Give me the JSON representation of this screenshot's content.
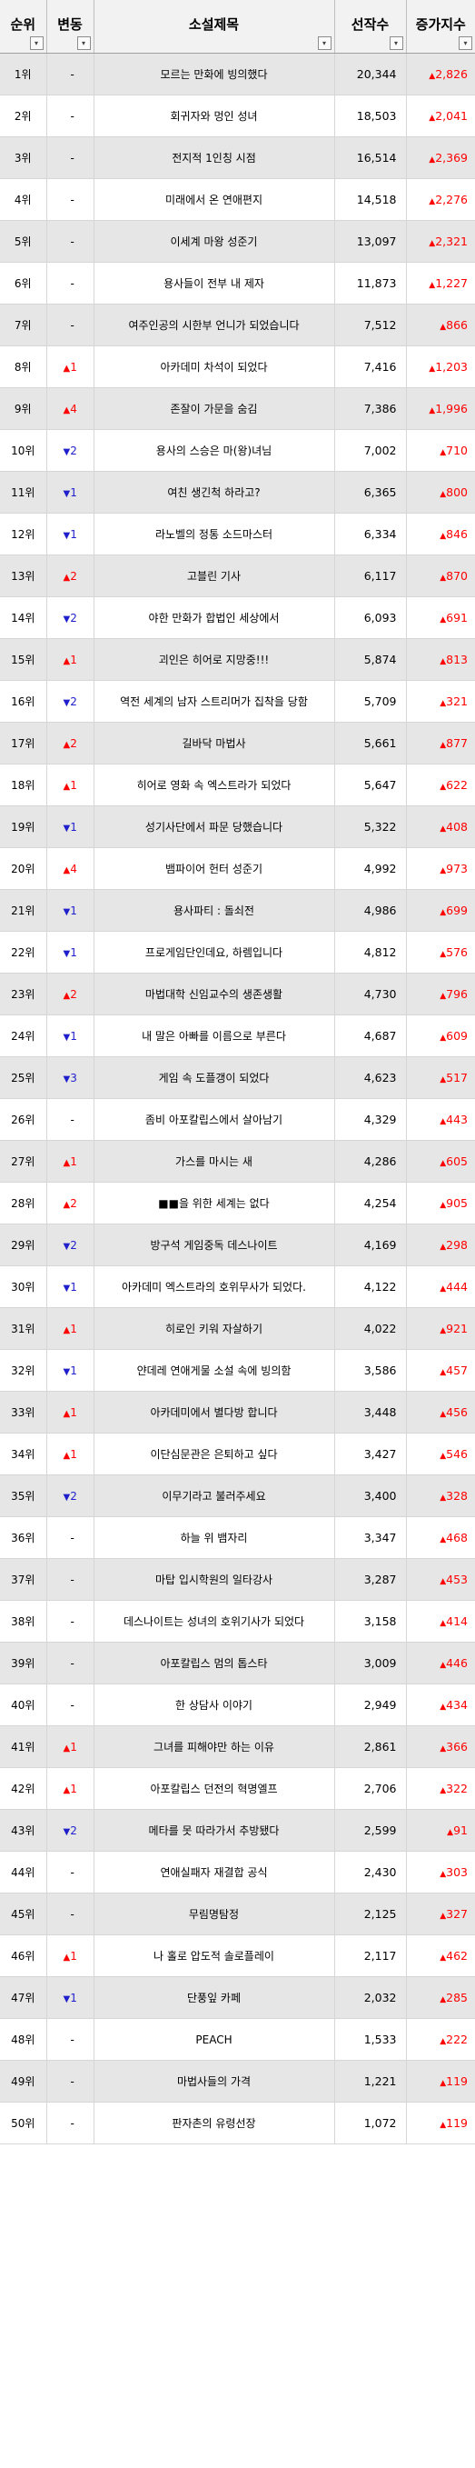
{
  "header": {
    "rank": "순위",
    "change": "변동",
    "title": "소설제목",
    "count": "선작수",
    "increase": "증가지수",
    "filter_icon": "▾"
  },
  "rows": [
    {
      "rank": "1위",
      "change_dir": "flat",
      "change": "-",
      "title": "모르는 만화에 빙의했다",
      "count": "20,344",
      "increase": "2,826"
    },
    {
      "rank": "2위",
      "change_dir": "flat",
      "change": "-",
      "title": "회귀자와 멍인 성녀",
      "count": "18,503",
      "increase": "2,041"
    },
    {
      "rank": "3위",
      "change_dir": "flat",
      "change": "-",
      "title": "전지적 1인칭 시점",
      "count": "16,514",
      "increase": "2,369"
    },
    {
      "rank": "4위",
      "change_dir": "flat",
      "change": "-",
      "title": "미래에서 온 연애편지",
      "count": "14,518",
      "increase": "2,276"
    },
    {
      "rank": "5위",
      "change_dir": "flat",
      "change": "-",
      "title": "이세계 마왕 성준기",
      "count": "13,097",
      "increase": "2,321"
    },
    {
      "rank": "6위",
      "change_dir": "flat",
      "change": "-",
      "title": "용사들이 전부 내 제자",
      "count": "11,873",
      "increase": "1,227"
    },
    {
      "rank": "7위",
      "change_dir": "flat",
      "change": "-",
      "title": "여주인공의 시한부 언니가 되었습니다",
      "count": "7,512",
      "increase": "866"
    },
    {
      "rank": "8위",
      "change_dir": "up",
      "change": "1",
      "title": "아카데미 차석이 되었다",
      "count": "7,416",
      "increase": "1,203"
    },
    {
      "rank": "9위",
      "change_dir": "up",
      "change": "4",
      "title": "존잘이 가문을 숨김",
      "count": "7,386",
      "increase": "1,996"
    },
    {
      "rank": "10위",
      "change_dir": "down",
      "change": "2",
      "title": "용사의 스승은 마(왕)녀님",
      "count": "7,002",
      "increase": "710"
    },
    {
      "rank": "11위",
      "change_dir": "down",
      "change": "1",
      "title": "여친 생긴척 하라고?",
      "count": "6,365",
      "increase": "800"
    },
    {
      "rank": "12위",
      "change_dir": "down",
      "change": "1",
      "title": "라노벨의 정통 소드마스터",
      "count": "6,334",
      "increase": "846"
    },
    {
      "rank": "13위",
      "change_dir": "up",
      "change": "2",
      "title": "고블린 기사",
      "count": "6,117",
      "increase": "870"
    },
    {
      "rank": "14위",
      "change_dir": "down",
      "change": "2",
      "title": "야한 만화가 합법인 세상에서",
      "count": "6,093",
      "increase": "691"
    },
    {
      "rank": "15위",
      "change_dir": "up",
      "change": "1",
      "title": "괴인은 히어로 지망중!!!",
      "count": "5,874",
      "increase": "813"
    },
    {
      "rank": "16위",
      "change_dir": "down",
      "change": "2",
      "title": "역전 세계의 남자 스트리머가 집착을 당함",
      "count": "5,709",
      "increase": "321"
    },
    {
      "rank": "17위",
      "change_dir": "up",
      "change": "2",
      "title": "길바닥 마법사",
      "count": "5,661",
      "increase": "877"
    },
    {
      "rank": "18위",
      "change_dir": "up",
      "change": "1",
      "title": "히어로 영화 속 엑스트라가 되었다",
      "count": "5,647",
      "increase": "622"
    },
    {
      "rank": "19위",
      "change_dir": "down",
      "change": "1",
      "title": "성기사단에서 파문 당했습니다",
      "count": "5,322",
      "increase": "408"
    },
    {
      "rank": "20위",
      "change_dir": "up",
      "change": "4",
      "title": "뱀파이어 헌터 성준기",
      "count": "4,992",
      "increase": "973"
    },
    {
      "rank": "21위",
      "change_dir": "down",
      "change": "1",
      "title": "용사파티 : 돌쇠전",
      "count": "4,986",
      "increase": "699"
    },
    {
      "rank": "22위",
      "change_dir": "down",
      "change": "1",
      "title": "프로게임단인데요, 하렘입니다",
      "count": "4,812",
      "increase": "576"
    },
    {
      "rank": "23위",
      "change_dir": "up",
      "change": "2",
      "title": "마법대학 신임교수의 생존생활",
      "count": "4,730",
      "increase": "796"
    },
    {
      "rank": "24위",
      "change_dir": "down",
      "change": "1",
      "title": "내 말은 아빠를 이름으로 부른다",
      "count": "4,687",
      "increase": "609"
    },
    {
      "rank": "25위",
      "change_dir": "down",
      "change": "3",
      "title": "게임 속 도플갱이 되었다",
      "count": "4,623",
      "increase": "517"
    },
    {
      "rank": "26위",
      "change_dir": "flat",
      "change": "-",
      "title": "좀비 아포칼립스에서 살아남기",
      "count": "4,329",
      "increase": "443"
    },
    {
      "rank": "27위",
      "change_dir": "up",
      "change": "1",
      "title": "가스를 마시는 새",
      "count": "4,286",
      "increase": "605"
    },
    {
      "rank": "28위",
      "change_dir": "up",
      "change": "2",
      "title": "■■을 위한 세계는 없다",
      "count": "4,254",
      "increase": "905"
    },
    {
      "rank": "29위",
      "change_dir": "down",
      "change": "2",
      "title": "방구석 게임중독 데스나이트",
      "count": "4,169",
      "increase": "298"
    },
    {
      "rank": "30위",
      "change_dir": "down",
      "change": "1",
      "title": "아카데미 엑스트라의 호위무사가 되었다.",
      "count": "4,122",
      "increase": "444"
    },
    {
      "rank": "31위",
      "change_dir": "up",
      "change": "1",
      "title": "히로인 키워 자살하기",
      "count": "4,022",
      "increase": "921"
    },
    {
      "rank": "32위",
      "change_dir": "down",
      "change": "1",
      "title": "얀데레 연애게물 소설 속에 빙의함",
      "count": "3,586",
      "increase": "457"
    },
    {
      "rank": "33위",
      "change_dir": "up",
      "change": "1",
      "title": "아카데미에서 별다방 합니다",
      "count": "3,448",
      "increase": "456"
    },
    {
      "rank": "34위",
      "change_dir": "up",
      "change": "1",
      "title": "이단심문관은 은퇴하고 싶다",
      "count": "3,427",
      "increase": "546"
    },
    {
      "rank": "35위",
      "change_dir": "down",
      "change": "2",
      "title": "이무기라고 불러주세요",
      "count": "3,400",
      "increase": "328"
    },
    {
      "rank": "36위",
      "change_dir": "flat",
      "change": "-",
      "title": "하늘 위 뱀자리",
      "count": "3,347",
      "increase": "468"
    },
    {
      "rank": "37위",
      "change_dir": "flat",
      "change": "-",
      "title": "마탑 입시학원의 일타강사",
      "count": "3,287",
      "increase": "453"
    },
    {
      "rank": "38위",
      "change_dir": "flat",
      "change": "-",
      "title": "데스나이트는 성녀의 호위기사가 되었다",
      "count": "3,158",
      "increase": "414"
    },
    {
      "rank": "39위",
      "change_dir": "flat",
      "change": "-",
      "title": "아포칼립스 멈의 톱스타",
      "count": "3,009",
      "increase": "446"
    },
    {
      "rank": "40위",
      "change_dir": "flat",
      "change": "-",
      "title": "한 상담사 이야기",
      "count": "2,949",
      "increase": "434"
    },
    {
      "rank": "41위",
      "change_dir": "up",
      "change": "1",
      "title": "그녀를 피해야만 하는 이유",
      "count": "2,861",
      "increase": "366"
    },
    {
      "rank": "42위",
      "change_dir": "up",
      "change": "1",
      "title": "아포칼립스 던전의 혁명엘프",
      "count": "2,706",
      "increase": "322"
    },
    {
      "rank": "43위",
      "change_dir": "down",
      "change": "2",
      "title": "메타를 못 따라가서 추방됐다",
      "count": "2,599",
      "increase": "91"
    },
    {
      "rank": "44위",
      "change_dir": "flat",
      "change": "-",
      "title": "연애실패자 재결합 공식",
      "count": "2,430",
      "increase": "303"
    },
    {
      "rank": "45위",
      "change_dir": "flat",
      "change": "-",
      "title": "무림명탐정",
      "count": "2,125",
      "increase": "327"
    },
    {
      "rank": "46위",
      "change_dir": "up",
      "change": "1",
      "title": "나 홀로 압도적 솔로플레이",
      "count": "2,117",
      "increase": "462"
    },
    {
      "rank": "47위",
      "change_dir": "down",
      "change": "1",
      "title": "단풍잎 카페",
      "count": "2,032",
      "increase": "285"
    },
    {
      "rank": "48위",
      "change_dir": "flat",
      "change": "-",
      "title": "PEACH",
      "count": "1,533",
      "increase": "222"
    },
    {
      "rank": "49위",
      "change_dir": "flat",
      "change": "-",
      "title": "마법사들의 가격",
      "count": "1,221",
      "increase": "119"
    },
    {
      "rank": "50위",
      "change_dir": "flat",
      "change": "-",
      "title": "판자촌의 유령선장",
      "count": "1,072",
      "increase": "119"
    }
  ]
}
